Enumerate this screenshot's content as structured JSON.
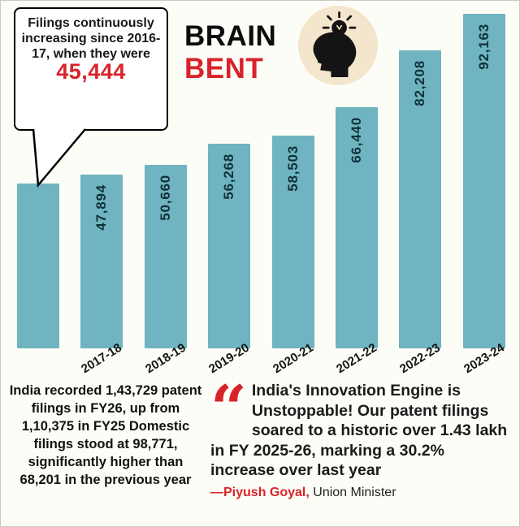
{
  "header": {
    "title_line1": "BRAIN",
    "title_line2": "BENT"
  },
  "callout": {
    "text_start": "Filings continuously increasing since ",
    "year_bold": "2016-17",
    "text_end": ", when they were",
    "value": "45,444"
  },
  "chart_data": {
    "type": "bar",
    "title": "BRAIN BENT",
    "xlabel": "",
    "ylabel": "",
    "categories": [
      "2016-17",
      "2017-18",
      "2018-19",
      "2019-20",
      "2020-21",
      "2021-22",
      "2022-23",
      "2023-24"
    ],
    "values": [
      45444,
      47894,
      50660,
      56268,
      58503,
      66440,
      82208,
      92163
    ],
    "bar_value_labels": [
      "",
      "47,894",
      "50,660",
      "56,268",
      "58,503",
      "66,440",
      "82,208",
      "92,163"
    ],
    "x_tick_labels": [
      "",
      "2017-18",
      "2018-19",
      "2019-20",
      "2020-21",
      "2021-22",
      "2022-23",
      "2023-24"
    ],
    "ylim": [
      0,
      95000
    ],
    "grid": false,
    "legend": false,
    "bar_color": "#6fb4c0",
    "bar_label_color": "#10303a"
  },
  "footer": {
    "left_text": "India recorded 1,43,729 patent filings in FY26, up from 1,10,375 in FY25 Domestic filings stood at 98,771, significantly higher than 68,201 in the previous year",
    "quote_mark": "“",
    "quote_text": "India's Innovation Engine is Unstoppable! Our patent filings soared to a historic over 1.43 lakh in FY 2025-26, marking a 30.2% increase over last year",
    "attribution_name": "—Piyush Goyal,",
    "attribution_role": " Union Minister"
  },
  "colors": {
    "accent_red": "#d8232a",
    "bar_teal": "#6fb4c0",
    "badge_cream": "#f4e6cc",
    "background": "#fdfdf7"
  },
  "icons": {
    "idea": "head-lightbulb-icon",
    "quote": "quote-icon"
  }
}
